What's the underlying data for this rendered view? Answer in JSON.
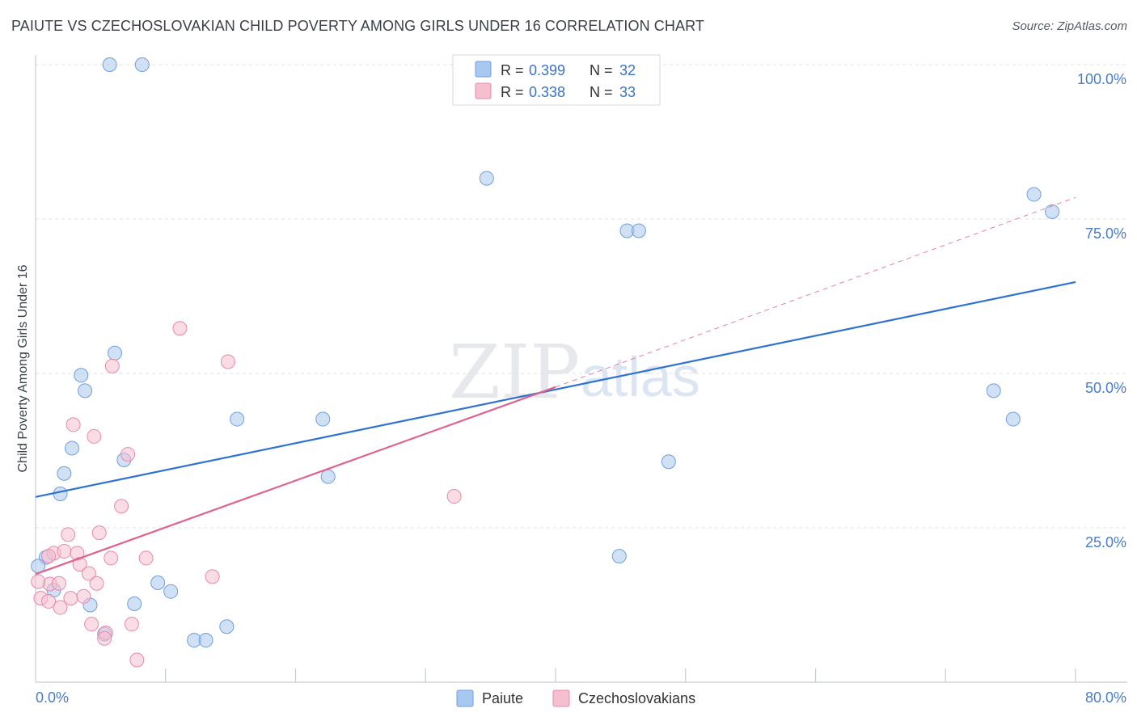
{
  "header": {
    "title": "PAIUTE VS CZECHOSLOVAKIAN CHILD POVERTY AMONG GIRLS UNDER 16 CORRELATION CHART",
    "source": "Source: ZipAtlas.com"
  },
  "watermark": {
    "part1": "ZIP",
    "part2": "atlas"
  },
  "legend": {
    "rows": [
      {
        "r_label": "R =",
        "r_value": "0.399",
        "n_label": "N =",
        "n_value": "32",
        "color": "#a9c8ef",
        "stroke": "#6f9fdc"
      },
      {
        "r_label": "R =",
        "r_value": "0.338",
        "n_label": "N =",
        "n_value": "33",
        "color": "#f6bfd0",
        "stroke": "#e88aa8"
      }
    ]
  },
  "bottom_legend": {
    "items": [
      "Paiute",
      "Czechoslovakians"
    ]
  },
  "chart_data": {
    "type": "scatter",
    "title": "PAIUTE VS CZECHOSLOVAKIAN CHILD POVERTY AMONG GIRLS UNDER 16 CORRELATION CHART",
    "xlabel": "",
    "ylabel": "Child Poverty Among Girls Under 16",
    "xlim": [
      0,
      80
    ],
    "ylim": [
      0,
      100
    ],
    "x_tick_labels": [
      "0.0%",
      "80.0%"
    ],
    "y_tick_labels": [
      "100.0%",
      "75.0%",
      "50.0%",
      "25.0%"
    ],
    "y_ticks": [
      100,
      75,
      50,
      25
    ],
    "grid": true,
    "legend_position": "top-center",
    "series": [
      {
        "name": "Paiute",
        "color": "#a9c8ef",
        "stroke": "#6f9fdc",
        "trend": {
          "x": [
            0,
            80
          ],
          "y": [
            30.0,
            64.8
          ],
          "color": "#2e72d2"
        },
        "points": [
          [
            5.7,
            100
          ],
          [
            8.2,
            100
          ],
          [
            34.7,
            81.6
          ],
          [
            45.5,
            73.1
          ],
          [
            46.4,
            73.1
          ],
          [
            76.8,
            79.0
          ],
          [
            78.2,
            76.2
          ],
          [
            6.1,
            53.3
          ],
          [
            3.5,
            49.7
          ],
          [
            3.8,
            47.2
          ],
          [
            15.5,
            42.6
          ],
          [
            22.1,
            42.6
          ],
          [
            73.7,
            47.2
          ],
          [
            75.2,
            42.6
          ],
          [
            2.8,
            37.9
          ],
          [
            6.8,
            36.0
          ],
          [
            48.7,
            35.7
          ],
          [
            2.2,
            33.8
          ],
          [
            22.5,
            33.3
          ],
          [
            1.9,
            30.5
          ],
          [
            0.8,
            20.2
          ],
          [
            44.9,
            20.4
          ],
          [
            0.2,
            18.8
          ],
          [
            1.4,
            14.9
          ],
          [
            9.4,
            16.1
          ],
          [
            10.4,
            14.7
          ],
          [
            4.2,
            12.5
          ],
          [
            7.6,
            12.7
          ],
          [
            14.7,
            9.0
          ],
          [
            5.3,
            7.8
          ],
          [
            12.2,
            6.8
          ],
          [
            13.1,
            6.8
          ]
        ]
      },
      {
        "name": "Czechoslovakians",
        "color": "#f6bfd0",
        "stroke": "#e88aa8",
        "trend": {
          "x": [
            0,
            40
          ],
          "y": [
            17.5,
            47.8
          ],
          "color": "#e0628d",
          "dashed_to": {
            "x": 80,
            "y": 78.5
          }
        },
        "points": [
          [
            11.1,
            57.3
          ],
          [
            5.9,
            51.2
          ],
          [
            14.8,
            51.9
          ],
          [
            2.9,
            41.7
          ],
          [
            4.5,
            39.8
          ],
          [
            7.1,
            36.9
          ],
          [
            32.2,
            30.1
          ],
          [
            6.6,
            28.5
          ],
          [
            2.5,
            23.9
          ],
          [
            4.9,
            24.2
          ],
          [
            1.4,
            20.9
          ],
          [
            2.2,
            21.2
          ],
          [
            3.2,
            20.9
          ],
          [
            1.0,
            20.4
          ],
          [
            5.8,
            20.1
          ],
          [
            8.5,
            20.1
          ],
          [
            3.4,
            19.1
          ],
          [
            4.1,
            17.6
          ],
          [
            13.6,
            17.1
          ],
          [
            1.1,
            15.9
          ],
          [
            1.8,
            16.0
          ],
          [
            4.7,
            16.0
          ],
          [
            0.4,
            13.6
          ],
          [
            2.7,
            13.6
          ],
          [
            3.7,
            13.9
          ],
          [
            1.0,
            13.1
          ],
          [
            1.9,
            12.1
          ],
          [
            4.3,
            9.4
          ],
          [
            7.4,
            9.4
          ],
          [
            5.4,
            8.0
          ],
          [
            5.3,
            7.1
          ],
          [
            7.8,
            3.6
          ],
          [
            0.2,
            16.3
          ]
        ]
      }
    ]
  }
}
